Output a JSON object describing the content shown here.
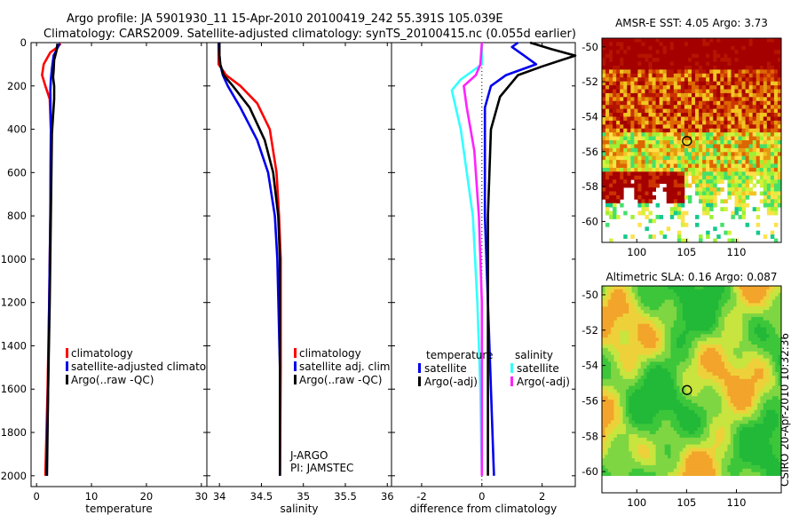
{
  "header": {
    "line1": "Argo profile: JA 5901930_11 15-Apr-2010 20100419_242 55.391S 105.039E",
    "line2": "Climatology: CARS2009. Satellite-adjusted climatology: synTS_20100415.nc (0.055d earlier)"
  },
  "side_text": "CSIRO 20-Apr-2010 10:32:36",
  "colors": {
    "red": "#ff0000",
    "blue": "#0000ee",
    "black": "#000000",
    "cyan": "#33ffff",
    "magenta": "#ff22ff"
  },
  "chart_data": [
    {
      "type": "line",
      "name": "temperature",
      "xlabel": "temperature",
      "xlim": [
        -1,
        31
      ],
      "ylim": [
        0,
        2050
      ],
      "y_reversed": true,
      "xticks": [
        0,
        10,
        20,
        30
      ],
      "yticks": [
        0,
        200,
        400,
        600,
        800,
        1000,
        1200,
        1400,
        1600,
        1800,
        2000
      ],
      "legend": [
        "climatology",
        "satellite-adjusted climatolo",
        "Argo(..raw -QC)"
      ],
      "series": [
        {
          "name": "climatology",
          "color": "red",
          "points": [
            [
              4.4,
              5
            ],
            [
              3.6,
              25
            ],
            [
              2.5,
              45
            ],
            [
              1.3,
              100
            ],
            [
              1.0,
              150
            ],
            [
              1.6,
              200
            ],
            [
              2.4,
              260
            ],
            [
              2.6,
              400
            ],
            [
              2.5,
              800
            ],
            [
              2.3,
              1200
            ],
            [
              2.0,
              1600
            ],
            [
              1.6,
              2000
            ]
          ]
        },
        {
          "name": "satellite-adjusted climatology",
          "color": "blue",
          "points": [
            [
              4.2,
              5
            ],
            [
              3.7,
              30
            ],
            [
              3.1,
              60
            ],
            [
              2.8,
              120
            ],
            [
              2.6,
              170
            ],
            [
              2.5,
              220
            ],
            [
              2.6,
              400
            ],
            [
              2.5,
              800
            ],
            [
              2.3,
              1200
            ],
            [
              2.1,
              1600
            ],
            [
              1.8,
              2000
            ]
          ]
        },
        {
          "name": "Argo(..raw -QC)",
          "color": "black",
          "points": [
            [
              3.8,
              5
            ],
            [
              3.6,
              40
            ],
            [
              3.2,
              80
            ],
            [
              3.1,
              130
            ],
            [
              3.0,
              160
            ],
            [
              3.2,
              200
            ],
            [
              3.2,
              260
            ],
            [
              2.8,
              420
            ],
            [
              2.6,
              800
            ],
            [
              2.4,
              1200
            ],
            [
              2.1,
              1600
            ],
            [
              1.9,
              2000
            ]
          ]
        }
      ]
    },
    {
      "type": "line",
      "name": "salinity",
      "xlabel": "salinity",
      "xlim": [
        33.85,
        36.05
      ],
      "ylim": [
        0,
        2050
      ],
      "y_reversed": true,
      "xticks": [
        34,
        34.5,
        35,
        35.5,
        36
      ],
      "yticks": [
        0,
        200,
        400,
        600,
        800,
        1000,
        1200,
        1400,
        1600,
        1800,
        2000
      ],
      "legend": [
        "climatology",
        "satellite adj. clim.",
        "Argo(..raw -QC)"
      ],
      "annotation": [
        "J-ARGO",
        "PI: JAMSTEC"
      ],
      "series": [
        {
          "name": "climatology",
          "color": "red",
          "points": [
            [
              33.99,
              0
            ],
            [
              33.99,
              60
            ],
            [
              33.99,
              100
            ],
            [
              34.08,
              150
            ],
            [
              34.25,
              200
            ],
            [
              34.45,
              280
            ],
            [
              34.6,
              400
            ],
            [
              34.68,
              600
            ],
            [
              34.71,
              800
            ],
            [
              34.73,
              1000
            ],
            [
              34.73,
              1500
            ],
            [
              34.72,
              2000
            ]
          ]
        },
        {
          "name": "satellite adj. clim.",
          "color": "blue",
          "points": [
            [
              33.99,
              0
            ],
            [
              34.0,
              60
            ],
            [
              34.01,
              100
            ],
            [
              34.04,
              150
            ],
            [
              34.1,
              200
            ],
            [
              34.25,
              300
            ],
            [
              34.45,
              450
            ],
            [
              34.58,
              600
            ],
            [
              34.66,
              800
            ],
            [
              34.69,
              1000
            ],
            [
              34.72,
              1500
            ],
            [
              34.72,
              2000
            ]
          ]
        },
        {
          "name": "Argo(..raw -QC)",
          "color": "black",
          "points": [
            [
              34.0,
              0
            ],
            [
              34.0,
              60
            ],
            [
              34.01,
              100
            ],
            [
              34.05,
              150
            ],
            [
              34.16,
              200
            ],
            [
              34.36,
              300
            ],
            [
              34.54,
              450
            ],
            [
              34.64,
              600
            ],
            [
              34.7,
              800
            ],
            [
              34.72,
              1000
            ],
            [
              34.72,
              1500
            ],
            [
              34.72,
              2000
            ]
          ]
        }
      ]
    },
    {
      "type": "line",
      "name": "difference",
      "xlabel": "difference from climatology",
      "xlim": [
        -3,
        3.1
      ],
      "ylim": [
        0,
        2050
      ],
      "y_reversed": true,
      "xticks": [
        -2,
        0,
        2
      ],
      "yticks": [
        0,
        200,
        400,
        600,
        800,
        1000,
        1200,
        1400,
        1600,
        1800,
        2000
      ],
      "legend_left_title": "temperature",
      "legend_right_title": "salinity",
      "legend": [
        "satellite",
        "Argo(-adj)",
        "satellite",
        "Argo(-adj)"
      ],
      "series": [
        {
          "name": "temperature satellite",
          "color": "blue",
          "points": [
            [
              1.2,
              0
            ],
            [
              1.0,
              20
            ],
            [
              1.4,
              60
            ],
            [
              1.8,
              100
            ],
            [
              0.8,
              150
            ],
            [
              0.3,
              200
            ],
            [
              0.1,
              300
            ],
            [
              0.1,
              800
            ],
            [
              0.2,
              1200
            ],
            [
              0.4,
              2000
            ]
          ]
        },
        {
          "name": "temperature Argo(-adj)",
          "color": "black",
          "points": [
            [
              1.6,
              0
            ],
            [
              2.3,
              30
            ],
            [
              3.1,
              60
            ],
            [
              2.0,
              110
            ],
            [
              1.2,
              150
            ],
            [
              0.6,
              250
            ],
            [
              0.3,
              400
            ],
            [
              0.2,
              800
            ],
            [
              0.2,
              1200
            ],
            [
              0.2,
              2000
            ]
          ]
        },
        {
          "name": "salinity satellite",
          "color": "cyan",
          "points": [
            [
              0,
              0
            ],
            [
              0,
              100
            ],
            [
              -0.7,
              170
            ],
            [
              -1.0,
              220
            ],
            [
              -0.7,
              400
            ],
            [
              -0.3,
              800
            ],
            [
              -0.15,
              1200
            ],
            [
              -0.05,
              1600
            ],
            [
              0,
              2000
            ]
          ]
        },
        {
          "name": "salinity Argo(-adj)",
          "color": "magenta",
          "points": [
            [
              0,
              0
            ],
            [
              -0.05,
              100
            ],
            [
              -0.2,
              150
            ],
            [
              -0.6,
              200
            ],
            [
              -0.5,
              300
            ],
            [
              -0.25,
              500
            ],
            [
              -0.1,
              800
            ],
            [
              0,
              1200
            ],
            [
              0,
              1600
            ],
            [
              0,
              2000
            ]
          ]
        }
      ]
    },
    {
      "type": "heatmap",
      "name": "AMSR-E SST map",
      "title": "AMSR-E SST: 4.05  Argo: 3.73",
      "xticks": [
        100,
        105,
        110
      ],
      "yticks": [
        -50,
        -52,
        -54,
        -56,
        -58,
        -60
      ],
      "xlim": [
        96.5,
        114.5
      ],
      "ylim": [
        -61.2,
        -49.5
      ],
      "marker": [
        105.039,
        -55.391
      ]
    },
    {
      "type": "heatmap",
      "name": "Altimetric SLA map",
      "title": "Altimetric SLA: 0.16  Argo: 0.087",
      "xticks": [
        100,
        105,
        110
      ],
      "yticks": [
        -50,
        -52,
        -54,
        -56,
        -58,
        -60
      ],
      "xlim": [
        96.5,
        114.5
      ],
      "ylim": [
        -61.2,
        -49.5
      ],
      "marker": [
        105.039,
        -55.391
      ]
    }
  ]
}
